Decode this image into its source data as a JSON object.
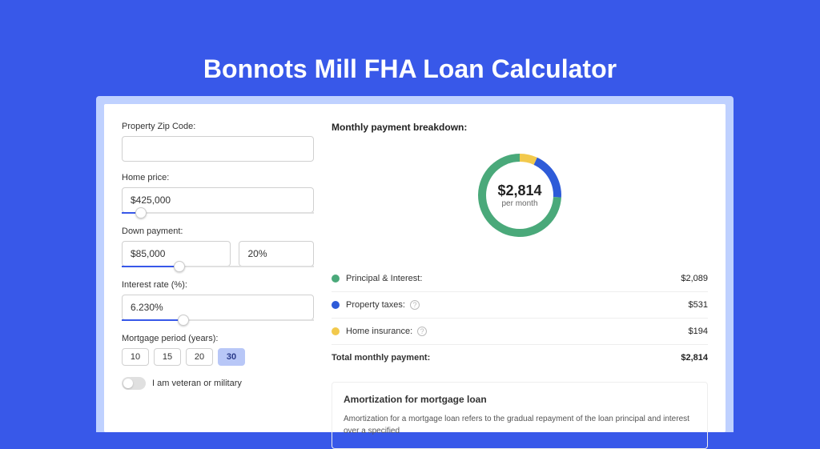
{
  "title": "Bonnots Mill FHA Loan Calculator",
  "form": {
    "zip": {
      "label": "Property Zip Code:",
      "value": ""
    },
    "home_price": {
      "label": "Home price:",
      "value": "$425,000",
      "slider_fill_pct": 10,
      "thumb_pct": 10
    },
    "down_payment": {
      "label": "Down payment:",
      "amount": "$85,000",
      "percent": "20%",
      "slider_fill_pct": 30,
      "thumb_pct": 30
    },
    "interest": {
      "label": "Interest rate (%):",
      "value": "6.230%",
      "slider_fill_pct": 32,
      "thumb_pct": 32
    },
    "period": {
      "label": "Mortgage period (years):",
      "options": [
        "10",
        "15",
        "20",
        "30"
      ],
      "selected": "30"
    },
    "veteran": {
      "label": "I am veteran or military",
      "checked": false
    }
  },
  "breakdown": {
    "title": "Monthly payment breakdown:",
    "amount": "$2,814",
    "sub": "per month",
    "segments": [
      {
        "key": "principal_interest",
        "label": "Principal & Interest:",
        "value": "$2,089",
        "color": "#4aa97a",
        "fraction": 0.742,
        "help": false
      },
      {
        "key": "property_taxes",
        "label": "Property taxes:",
        "value": "$531",
        "color": "#2e5bd8",
        "fraction": 0.189,
        "help": true
      },
      {
        "key": "home_insurance",
        "label": "Home insurance:",
        "value": "$194",
        "color": "#f2c94c",
        "fraction": 0.069,
        "help": true
      }
    ],
    "total_label": "Total monthly payment:",
    "total_value": "$2,814",
    "donut": {
      "radius": 52,
      "thickness": 22,
      "inner_radius": 42,
      "inner_fill": "#ffffff",
      "bg_fill": "#ffffff"
    }
  },
  "amortization": {
    "title": "Amortization for mortgage loan",
    "body": "Amortization for a mortgage loan refers to the gradual repayment of the loan principal and interest over a specified"
  },
  "style": {
    "bg": "#3858e9",
    "outer_card_bg": "#bfd1ff",
    "card_bg": "#ffffff",
    "title_color": "#ffffff"
  }
}
